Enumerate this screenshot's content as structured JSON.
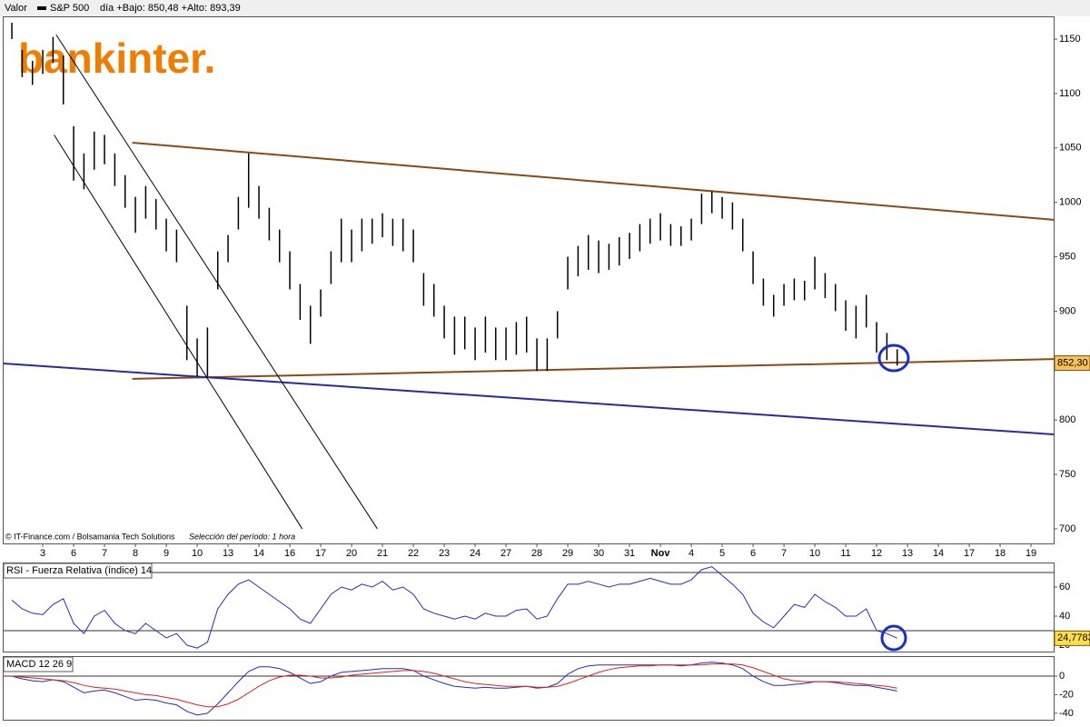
{
  "header": {
    "label": "Valor",
    "stats": "día +Bajo: 850,48 +Alto: 893,39"
  },
  "logo": "bankinter.",
  "footer": {
    "source": "© IT-Finance.com / Bolsamania Tech Solutions",
    "period": "Selección del período: 1 hora"
  },
  "chart_data": [
    {
      "type": "ohlc",
      "series": [
        {
          "name": "S&P 500",
          "color": "#000000",
          "high": [
            1165,
            1140,
            1130,
            1140,
            1152,
            1135,
            1070,
            1045,
            1065,
            1062,
            1045,
            1025,
            1005,
            1015,
            1003,
            985,
            975,
            905,
            875,
            885,
            955,
            970,
            1005,
            1045,
            1015,
            995,
            975,
            955,
            925,
            905,
            920,
            955,
            985,
            975,
            985,
            985,
            990,
            985,
            985,
            975,
            935,
            925,
            905,
            895,
            895,
            885,
            895,
            885,
            885,
            890,
            895,
            875,
            875,
            900,
            950,
            960,
            970,
            965,
            962,
            968,
            972,
            980,
            985,
            990,
            980,
            978,
            985,
            1008,
            1010,
            1005,
            1000,
            985,
            955,
            930,
            915,
            925,
            930,
            928,
            950,
            935,
            925,
            910,
            905,
            915,
            890,
            880,
            865
          ],
          "low": [
            1150,
            1115,
            1108,
            1118,
            1128,
            1090,
            1020,
            1012,
            1030,
            1035,
            1015,
            995,
            972,
            985,
            975,
            955,
            945,
            855,
            840,
            840,
            920,
            945,
            975,
            995,
            985,
            965,
            945,
            920,
            892,
            870,
            895,
            925,
            945,
            945,
            955,
            962,
            968,
            960,
            955,
            945,
            905,
            895,
            875,
            860,
            865,
            855,
            862,
            855,
            855,
            860,
            862,
            845,
            845,
            875,
            920,
            932,
            938,
            935,
            938,
            942,
            948,
            955,
            962,
            965,
            960,
            960,
            965,
            980,
            990,
            985,
            975,
            955,
            925,
            905,
            895,
            905,
            910,
            910,
            920,
            912,
            900,
            882,
            875,
            885,
            862,
            855,
            850
          ]
        }
      ],
      "xlim": [
        -0.8,
        101.2
      ],
      "xticks": [
        {
          "value": 3,
          "label": "3"
        },
        {
          "value": 6,
          "label": "6"
        },
        {
          "value": 9,
          "label": "7"
        },
        {
          "value": 12,
          "label": "8"
        },
        {
          "value": 15,
          "label": "9"
        },
        {
          "value": 18,
          "label": "10"
        },
        {
          "value": 21,
          "label": "13"
        },
        {
          "value": 24,
          "label": "14"
        },
        {
          "value": 27,
          "label": "16"
        },
        {
          "value": 30,
          "label": "17"
        },
        {
          "value": 33,
          "label": "20"
        },
        {
          "value": 36,
          "label": "21"
        },
        {
          "value": 39,
          "label": "22"
        },
        {
          "value": 42,
          "label": "23"
        },
        {
          "value": 45,
          "label": "24"
        },
        {
          "value": 48,
          "label": "27"
        },
        {
          "value": 51,
          "label": "28"
        },
        {
          "value": 54,
          "label": "29"
        },
        {
          "value": 57,
          "label": "30"
        },
        {
          "value": 60,
          "label": "31"
        },
        {
          "value": 63,
          "label": "Nov"
        },
        {
          "value": 66,
          "label": "4"
        },
        {
          "value": 69,
          "label": "5"
        },
        {
          "value": 72,
          "label": "6"
        },
        {
          "value": 75,
          "label": "7"
        },
        {
          "value": 78,
          "label": "10"
        },
        {
          "value": 81,
          "label": "11"
        },
        {
          "value": 84,
          "label": "12"
        },
        {
          "value": 87,
          "label": "13"
        },
        {
          "value": 90,
          "label": "14"
        },
        {
          "value": 93,
          "label": "17"
        },
        {
          "value": 96,
          "label": "18"
        },
        {
          "value": 99,
          "label": "19"
        }
      ],
      "ylim": [
        686.6,
        1170.9
      ],
      "yticks": [
        700,
        750,
        800,
        850,
        900,
        950,
        1000,
        1050,
        1100,
        1150
      ],
      "last_value": {
        "value": 852.3,
        "label": "852,30"
      },
      "trendlines": [
        {
          "color": "#8b4a12",
          "x": [
            11.7,
            101.2
          ],
          "y": [
            1054.8,
            984
          ]
        },
        {
          "color": "#8b4a12",
          "x": [
            11.7,
            101.2
          ],
          "y": [
            837.8,
            856
          ]
        },
        {
          "color": "#2a2aa0",
          "x": [
            -0.8,
            101.2
          ],
          "y": [
            851.9,
            786.8
          ]
        },
        {
          "color": "#000000",
          "x": [
            4.3,
            35.5
          ],
          "y": [
            1154,
            700
          ]
        },
        {
          "color": "#000000",
          "x": [
            4.1,
            28.2
          ],
          "y": [
            1062,
            700
          ]
        }
      ]
    },
    {
      "type": "line",
      "title": "RSI - Fuerza Relativa (índice) 14",
      "series": [
        {
          "color": "#2b2bb0",
          "values": [
            51,
            45,
            42,
            41,
            48,
            52,
            35,
            28,
            40,
            44,
            35,
            30,
            28,
            35,
            30,
            25,
            28,
            20,
            18,
            22,
            45,
            55,
            62,
            65,
            60,
            55,
            50,
            45,
            38,
            35,
            45,
            55,
            60,
            58,
            62,
            60,
            64,
            58,
            60,
            55,
            45,
            42,
            40,
            38,
            40,
            38,
            42,
            40,
            40,
            44,
            45,
            38,
            40,
            52,
            62,
            62,
            64,
            62,
            60,
            62,
            62,
            64,
            66,
            64,
            62,
            62,
            65,
            72,
            74,
            68,
            62,
            55,
            42,
            36,
            32,
            40,
            48,
            46,
            55,
            50,
            46,
            40,
            40,
            45,
            30,
            28,
            24.7783
          ]
        }
      ],
      "xlim": [
        -0.8,
        101.2
      ],
      "ylim": [
        15.6,
        76.9
      ],
      "yticks": [
        20,
        40,
        60
      ],
      "levels": [
        30,
        70
      ],
      "last_value": {
        "value": 24.7783,
        "label": "24,7783"
      }
    },
    {
      "type": "line",
      "title": "MACD 12 26 9",
      "series": [
        {
          "color": "#2b2bb0",
          "values": [
            0,
            -3,
            -5,
            -6,
            -4,
            -6,
            -12,
            -18,
            -16,
            -15,
            -18,
            -22,
            -26,
            -25,
            -26,
            -29,
            -31,
            -38,
            -42,
            -40,
            -30,
            -18,
            -6,
            5,
            10,
            10,
            8,
            4,
            -2,
            -8,
            -6,
            0,
            4,
            5,
            6,
            7,
            8,
            8,
            8,
            6,
            0,
            -4,
            -8,
            -11,
            -12,
            -13,
            -12,
            -13,
            -13,
            -12,
            -11,
            -13,
            -12,
            -8,
            2,
            8,
            11,
            12,
            12,
            12,
            12,
            12,
            12,
            12,
            12,
            11,
            12,
            14,
            15,
            14,
            12,
            8,
            0,
            -6,
            -10,
            -10,
            -9,
            -8,
            -6,
            -6,
            -7,
            -9,
            -10,
            -10,
            -12,
            -14,
            -16
          ]
        },
        {
          "color": "#e02020",
          "values": [
            0,
            -1,
            -2,
            -3,
            -4,
            -5,
            -7,
            -10,
            -12,
            -13,
            -14,
            -16,
            -18,
            -20,
            -21,
            -23,
            -25,
            -28,
            -31,
            -33,
            -33,
            -30,
            -25,
            -18,
            -11,
            -5,
            -1,
            1,
            1,
            0,
            -2,
            -2,
            -1,
            1,
            2,
            3,
            4,
            5,
            6,
            6,
            5,
            3,
            0,
            -3,
            -6,
            -8,
            -9,
            -10,
            -11,
            -11,
            -11,
            -12,
            -12,
            -11,
            -8,
            -4,
            0,
            4,
            7,
            9,
            10,
            11,
            11,
            12,
            12,
            12,
            12,
            12,
            13,
            13,
            13,
            12,
            9,
            5,
            1,
            -3,
            -5,
            -6,
            -6,
            -6,
            -6,
            -7,
            -8,
            -9,
            -10,
            -11,
            -13
          ]
        }
      ],
      "xlim": [
        -0.8,
        101.2
      ],
      "ylim": [
        -47,
        21.5
      ],
      "yticks": [
        -40,
        -20,
        0
      ],
      "levels": [
        0
      ]
    }
  ]
}
